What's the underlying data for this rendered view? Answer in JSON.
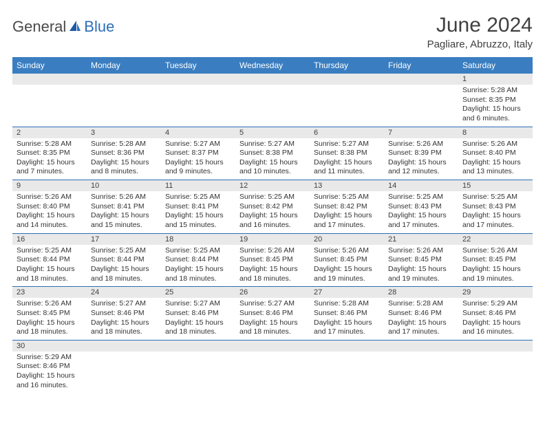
{
  "brand": {
    "part1": "General",
    "part2": "Blue"
  },
  "title": "June 2024",
  "location": "Pagliare, Abruzzo, Italy",
  "colors": {
    "header_bg": "#3a7ec1",
    "header_text": "#ffffff",
    "daynum_bg": "#e9e9e9",
    "cell_border": "#2d6eb5",
    "logo_dark": "#4a4a4a",
    "logo_blue": "#2d6eb5"
  },
  "weekdays": [
    "Sunday",
    "Monday",
    "Tuesday",
    "Wednesday",
    "Thursday",
    "Friday",
    "Saturday"
  ],
  "weeks": [
    [
      null,
      null,
      null,
      null,
      null,
      null,
      {
        "n": "1",
        "sr": "Sunrise: 5:28 AM",
        "ss": "Sunset: 8:35 PM",
        "d1": "Daylight: 15 hours",
        "d2": "and 6 minutes."
      }
    ],
    [
      {
        "n": "2",
        "sr": "Sunrise: 5:28 AM",
        "ss": "Sunset: 8:35 PM",
        "d1": "Daylight: 15 hours",
        "d2": "and 7 minutes."
      },
      {
        "n": "3",
        "sr": "Sunrise: 5:28 AM",
        "ss": "Sunset: 8:36 PM",
        "d1": "Daylight: 15 hours",
        "d2": "and 8 minutes."
      },
      {
        "n": "4",
        "sr": "Sunrise: 5:27 AM",
        "ss": "Sunset: 8:37 PM",
        "d1": "Daylight: 15 hours",
        "d2": "and 9 minutes."
      },
      {
        "n": "5",
        "sr": "Sunrise: 5:27 AM",
        "ss": "Sunset: 8:38 PM",
        "d1": "Daylight: 15 hours",
        "d2": "and 10 minutes."
      },
      {
        "n": "6",
        "sr": "Sunrise: 5:27 AM",
        "ss": "Sunset: 8:38 PM",
        "d1": "Daylight: 15 hours",
        "d2": "and 11 minutes."
      },
      {
        "n": "7",
        "sr": "Sunrise: 5:26 AM",
        "ss": "Sunset: 8:39 PM",
        "d1": "Daylight: 15 hours",
        "d2": "and 12 minutes."
      },
      {
        "n": "8",
        "sr": "Sunrise: 5:26 AM",
        "ss": "Sunset: 8:40 PM",
        "d1": "Daylight: 15 hours",
        "d2": "and 13 minutes."
      }
    ],
    [
      {
        "n": "9",
        "sr": "Sunrise: 5:26 AM",
        "ss": "Sunset: 8:40 PM",
        "d1": "Daylight: 15 hours",
        "d2": "and 14 minutes."
      },
      {
        "n": "10",
        "sr": "Sunrise: 5:26 AM",
        "ss": "Sunset: 8:41 PM",
        "d1": "Daylight: 15 hours",
        "d2": "and 15 minutes."
      },
      {
        "n": "11",
        "sr": "Sunrise: 5:25 AM",
        "ss": "Sunset: 8:41 PM",
        "d1": "Daylight: 15 hours",
        "d2": "and 15 minutes."
      },
      {
        "n": "12",
        "sr": "Sunrise: 5:25 AM",
        "ss": "Sunset: 8:42 PM",
        "d1": "Daylight: 15 hours",
        "d2": "and 16 minutes."
      },
      {
        "n": "13",
        "sr": "Sunrise: 5:25 AM",
        "ss": "Sunset: 8:42 PM",
        "d1": "Daylight: 15 hours",
        "d2": "and 17 minutes."
      },
      {
        "n": "14",
        "sr": "Sunrise: 5:25 AM",
        "ss": "Sunset: 8:43 PM",
        "d1": "Daylight: 15 hours",
        "d2": "and 17 minutes."
      },
      {
        "n": "15",
        "sr": "Sunrise: 5:25 AM",
        "ss": "Sunset: 8:43 PM",
        "d1": "Daylight: 15 hours",
        "d2": "and 17 minutes."
      }
    ],
    [
      {
        "n": "16",
        "sr": "Sunrise: 5:25 AM",
        "ss": "Sunset: 8:44 PM",
        "d1": "Daylight: 15 hours",
        "d2": "and 18 minutes."
      },
      {
        "n": "17",
        "sr": "Sunrise: 5:25 AM",
        "ss": "Sunset: 8:44 PM",
        "d1": "Daylight: 15 hours",
        "d2": "and 18 minutes."
      },
      {
        "n": "18",
        "sr": "Sunrise: 5:25 AM",
        "ss": "Sunset: 8:44 PM",
        "d1": "Daylight: 15 hours",
        "d2": "and 18 minutes."
      },
      {
        "n": "19",
        "sr": "Sunrise: 5:26 AM",
        "ss": "Sunset: 8:45 PM",
        "d1": "Daylight: 15 hours",
        "d2": "and 18 minutes."
      },
      {
        "n": "20",
        "sr": "Sunrise: 5:26 AM",
        "ss": "Sunset: 8:45 PM",
        "d1": "Daylight: 15 hours",
        "d2": "and 19 minutes."
      },
      {
        "n": "21",
        "sr": "Sunrise: 5:26 AM",
        "ss": "Sunset: 8:45 PM",
        "d1": "Daylight: 15 hours",
        "d2": "and 19 minutes."
      },
      {
        "n": "22",
        "sr": "Sunrise: 5:26 AM",
        "ss": "Sunset: 8:45 PM",
        "d1": "Daylight: 15 hours",
        "d2": "and 19 minutes."
      }
    ],
    [
      {
        "n": "23",
        "sr": "Sunrise: 5:26 AM",
        "ss": "Sunset: 8:45 PM",
        "d1": "Daylight: 15 hours",
        "d2": "and 18 minutes."
      },
      {
        "n": "24",
        "sr": "Sunrise: 5:27 AM",
        "ss": "Sunset: 8:46 PM",
        "d1": "Daylight: 15 hours",
        "d2": "and 18 minutes."
      },
      {
        "n": "25",
        "sr": "Sunrise: 5:27 AM",
        "ss": "Sunset: 8:46 PM",
        "d1": "Daylight: 15 hours",
        "d2": "and 18 minutes."
      },
      {
        "n": "26",
        "sr": "Sunrise: 5:27 AM",
        "ss": "Sunset: 8:46 PM",
        "d1": "Daylight: 15 hours",
        "d2": "and 18 minutes."
      },
      {
        "n": "27",
        "sr": "Sunrise: 5:28 AM",
        "ss": "Sunset: 8:46 PM",
        "d1": "Daylight: 15 hours",
        "d2": "and 17 minutes."
      },
      {
        "n": "28",
        "sr": "Sunrise: 5:28 AM",
        "ss": "Sunset: 8:46 PM",
        "d1": "Daylight: 15 hours",
        "d2": "and 17 minutes."
      },
      {
        "n": "29",
        "sr": "Sunrise: 5:29 AM",
        "ss": "Sunset: 8:46 PM",
        "d1": "Daylight: 15 hours",
        "d2": "and 16 minutes."
      }
    ],
    [
      {
        "n": "30",
        "sr": "Sunrise: 5:29 AM",
        "ss": "Sunset: 8:46 PM",
        "d1": "Daylight: 15 hours",
        "d2": "and 16 minutes."
      },
      null,
      null,
      null,
      null,
      null,
      null
    ]
  ]
}
